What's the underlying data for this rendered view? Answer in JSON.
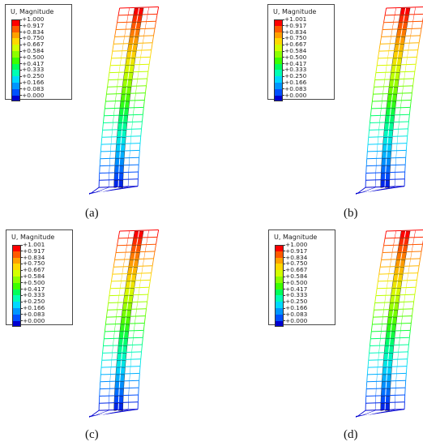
{
  "legend_title": "U, Magnitude",
  "colorscale": [
    "#ff0000",
    "#ff5a00",
    "#ffa000",
    "#ffd800",
    "#d2ff00",
    "#8cff00",
    "#3cff00",
    "#00ff5a",
    "#00ffb4",
    "#00d8ff",
    "#0096ff",
    "#0050ff",
    "#0000d0"
  ],
  "panels": [
    {
      "label": "(a)",
      "legend_values": [
        "+1.000",
        "+0.917",
        "+0.834",
        "+0.750",
        "+0.667",
        "+0.584",
        "+0.500",
        "+0.417",
        "+0.333",
        "+0.250",
        "+0.166",
        "+0.083",
        "+0.000"
      ]
    },
    {
      "label": "(b)",
      "legend_values": [
        "+1.001",
        "+0.917",
        "+0.834",
        "+0.750",
        "+0.667",
        "+0.584",
        "+0.500",
        "+0.417",
        "+0.333",
        "+0.250",
        "+0.166",
        "+0.083",
        "+0.000"
      ]
    },
    {
      "label": "(c)",
      "legend_values": [
        "+1.001",
        "+0.917",
        "+0.834",
        "+0.750",
        "+0.667",
        "+0.584",
        "+0.500",
        "+0.417",
        "+0.333",
        "+0.250",
        "+0.166",
        "+0.083",
        "+0.000"
      ]
    },
    {
      "label": "(d)",
      "legend_values": [
        "+1.000",
        "+0.917",
        "+0.834",
        "+0.750",
        "+0.667",
        "+0.584",
        "+0.500",
        "+0.417",
        "+0.333",
        "+0.250",
        "+0.166",
        "+0.083",
        "+0.000"
      ]
    }
  ]
}
